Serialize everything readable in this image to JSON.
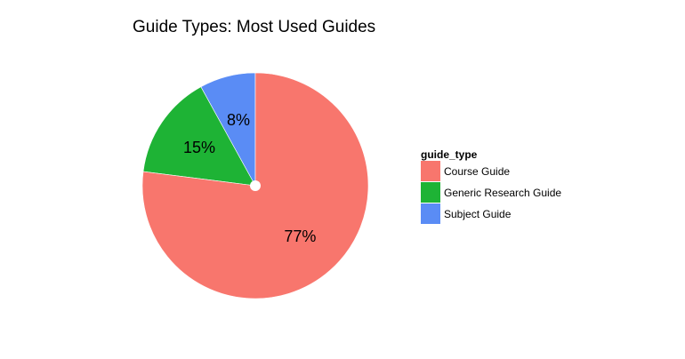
{
  "chart_data": {
    "type": "pie",
    "title": "Guide Types: Most Used Guides",
    "legend": {
      "title": "guide_type",
      "placement": "right"
    },
    "slices": [
      {
        "label": "Course Guide",
        "value": 77,
        "display": "77%",
        "color": "#F8766D"
      },
      {
        "label": "Generic Research Guide",
        "value": 15,
        "display": "15%",
        "color": "#1EB335"
      },
      {
        "label": "Subject Guide",
        "value": 8,
        "display": "8%",
        "color": "#5A8CF5"
      }
    ],
    "grid": false
  }
}
